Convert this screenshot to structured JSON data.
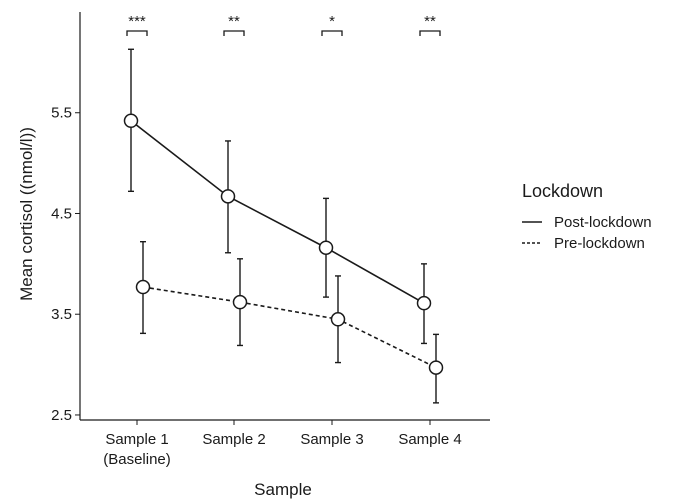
{
  "chart_data": {
    "type": "line",
    "xlabel": "Sample",
    "ylabel": "Mean cortisol ((nmol/l))",
    "categories": [
      [
        "Sample 1",
        "(Baseline)"
      ],
      [
        "Sample 2"
      ],
      [
        "Sample 3"
      ],
      [
        "Sample 4"
      ]
    ],
    "ylim": [
      2.45,
      6.5
    ],
    "yticks": [
      2.5,
      3.5,
      4.5,
      5.5
    ],
    "ytick_labels": [
      "2.5",
      "3.5",
      "4.5",
      "5.5"
    ],
    "grid": false,
    "legend": {
      "title": "Lockdown",
      "position": "right"
    },
    "series": [
      {
        "name": "Post-lockdown",
        "line_style": "solid",
        "values": [
          5.42,
          4.67,
          4.16,
          3.61
        ],
        "error_low": [
          4.72,
          4.11,
          3.67,
          3.21
        ],
        "error_high": [
          6.13,
          5.22,
          4.65,
          4.0
        ]
      },
      {
        "name": "Pre-lockdown",
        "line_style": "dashed",
        "values": [
          3.77,
          3.62,
          3.45,
          2.97
        ],
        "error_low": [
          3.31,
          3.19,
          3.02,
          2.62
        ],
        "error_high": [
          4.22,
          4.05,
          3.88,
          3.3
        ]
      }
    ],
    "significance": [
      "***",
      "**",
      "*",
      "**"
    ]
  }
}
